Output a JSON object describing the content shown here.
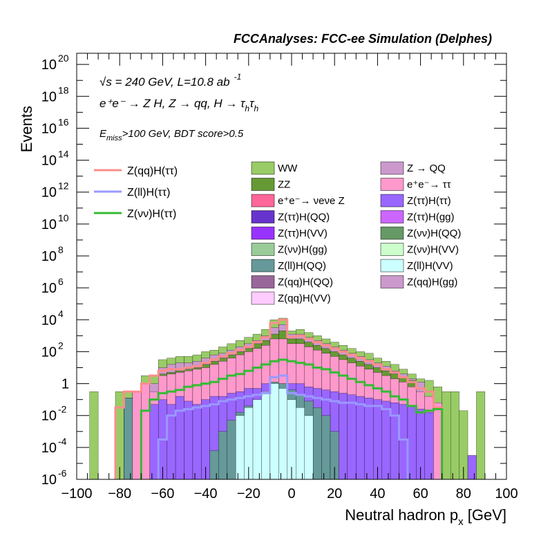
{
  "header": {
    "title": "FCCAnalyses: FCC-ee Simulation (Delphes)"
  },
  "annotations": {
    "energy_prefix": "√s = 240 GeV, L=10.8 ab",
    "energy_sup": "-1",
    "process": "e⁺e⁻ → Z H, Z → qq, H → τ",
    "process_sub1": "h",
    "process_tau2": "τ",
    "process_sub2": "h",
    "cut_E": "E",
    "cut_sub": "miss",
    "cut_rest": ">100 GeV, BDT score>0.5"
  },
  "colors": {
    "frame": "#000000",
    "signal_qq": "#ff8c8c",
    "signal_ll": "#9999ff",
    "signal_vv": "#33bb33"
  },
  "chart_data": {
    "type": "bar",
    "subtype": "stacked-histogram-log",
    "xlabel": "Neutral hadron p",
    "xlabel_sub": "x",
    "xlabel_unit": " [GeV]",
    "ylabel": "Events",
    "xlim": [
      -100,
      100
    ],
    "ylim_log10": [
      -6,
      20.7
    ],
    "log_y": true,
    "x_ticks": [
      "−100",
      "−80",
      "−60",
      "−40",
      "−20",
      "0",
      "20",
      "40",
      "60",
      "80",
      "100"
    ],
    "y_ticks": [
      {
        "base": "10",
        "exp": "20"
      },
      {
        "base": "10",
        "exp": "18"
      },
      {
        "base": "10",
        "exp": "16"
      },
      {
        "base": "10",
        "exp": "14"
      },
      {
        "base": "10",
        "exp": "12"
      },
      {
        "base": "10",
        "exp": "10"
      },
      {
        "base": "10",
        "exp": "8"
      },
      {
        "base": "10",
        "exp": "6"
      },
      {
        "base": "10",
        "exp": "4"
      },
      {
        "base": "10",
        "exp": "2"
      },
      {
        "base": "1",
        "exp": ""
      },
      {
        "base": "10",
        "exp": "-2"
      },
      {
        "base": "10",
        "exp": "-4"
      },
      {
        "base": "10",
        "exp": "-6"
      }
    ],
    "legend_placement": "top",
    "signal_legend": [
      {
        "label": "Z(qq)H(ττ)",
        "color": "#ff8c8c"
      },
      {
        "label": "Z(ll)H(ττ)",
        "color": "#9999ff"
      },
      {
        "label": "Z(νν)H(ττ)",
        "color": "#33bb33"
      }
    ],
    "background_legend": [
      {
        "label": "WW",
        "color": "#99cc66"
      },
      {
        "label": "Z → QQ",
        "color": "#cc99cc"
      },
      {
        "label": "ZZ",
        "color": "#669933"
      },
      {
        "label": "e⁺e⁻→ ττ",
        "color": "#ff99cc"
      },
      {
        "label": "e⁺e⁻→ νeνe Z",
        "color": "#ff6699"
      },
      {
        "label": "Z(ττ)H(ττ)",
        "color": "#9966ff"
      },
      {
        "label": "Z(ττ)H(QQ)",
        "color": "#6633cc"
      },
      {
        "label": "Z(ττ)H(gg)",
        "color": "#cc66ff"
      },
      {
        "label": "Z(ττ)H(VV)",
        "color": "#9933ff"
      },
      {
        "label": "Z(νν)H(QQ)",
        "color": "#669966"
      },
      {
        "label": "Z(νν)H(gg)",
        "color": "#99cc99"
      },
      {
        "label": "Z(νν)H(VV)",
        "color": "#ccffcc"
      },
      {
        "label": "Z(ll)H(QQ)",
        "color": "#669999"
      },
      {
        "label": "Z(ll)H(VV)",
        "color": "#ccffff"
      },
      {
        "label": "Z(qq)H(QQ)",
        "color": "#996699"
      },
      {
        "label": "Z(qq)H(gg)",
        "color": "#cc99cc"
      },
      {
        "label": "Z(qq)H(VV)",
        "color": "#ffccff"
      }
    ],
    "bin_width": 4,
    "bins_x": [
      -92,
      -88,
      -84,
      -80,
      -76,
      -72,
      -68,
      -64,
      -60,
      -56,
      -52,
      -48,
      -44,
      -40,
      -36,
      -32,
      -28,
      -24,
      -20,
      -16,
      -12,
      -8,
      -4,
      0,
      4,
      8,
      12,
      16,
      20,
      24,
      28,
      32,
      36,
      40,
      44,
      48,
      52,
      56,
      60,
      64,
      68,
      72,
      76,
      80,
      84,
      88,
      92,
      96
    ],
    "stack_tops": [
      {
        "name": "WW",
        "color": "#99cc66",
        "log10": [
          -0.5,
          null,
          null,
          -0.5,
          -0.5,
          null,
          0.5,
          0.5,
          1.5,
          1.6,
          1.7,
          1.7,
          1.8,
          2.0,
          2.1,
          2.3,
          2.5,
          2.7,
          2.9,
          3.1,
          3.4,
          4.0,
          4.1,
          3.3,
          3.4,
          3.2,
          3.0,
          2.8,
          2.6,
          2.4,
          2.2,
          2.0,
          1.9,
          1.6,
          1.4,
          1.2,
          0.9,
          0.6,
          0.3,
          0.2,
          -0.2,
          -0.5,
          -0.5,
          -1.7,
          null,
          -0.5,
          null,
          null
        ]
      },
      {
        "name": "Z → QQ",
        "color": "#cc99cc",
        "log10": [
          null,
          null,
          null,
          null,
          null,
          null,
          null,
          0.0,
          1.0,
          1.2,
          1.3,
          1.3,
          1.4,
          1.6,
          1.8,
          1.9,
          2.1,
          2.3,
          2.5,
          2.7,
          3.0,
          3.5,
          3.7,
          3.1,
          3.1,
          2.9,
          2.7,
          2.5,
          2.3,
          2.1,
          1.9,
          1.7,
          1.5,
          1.3,
          1.1,
          0.8,
          0.6,
          0.3,
          0.1,
          null,
          null,
          null,
          null,
          null,
          null,
          null,
          null,
          null
        ]
      },
      {
        "name": "ZZ",
        "color": "#669933",
        "log10": [
          null,
          null,
          null,
          null,
          -0.9,
          null,
          null,
          null,
          0.6,
          0.7,
          0.8,
          0.9,
          1.0,
          1.2,
          1.4,
          1.6,
          1.8,
          2.0,
          2.2,
          2.5,
          2.7,
          3.1,
          3.3,
          2.8,
          2.8,
          2.6,
          2.4,
          2.2,
          2.0,
          1.8,
          1.6,
          1.4,
          1.2,
          1.0,
          0.8,
          0.6,
          0.4,
          0.2,
          null,
          null,
          null,
          null,
          null,
          null,
          null,
          null,
          null,
          null
        ]
      },
      {
        "name": "e⁺e⁻→ ττ",
        "color": "#ff99cc",
        "log10": [
          null,
          null,
          null,
          null,
          -1.0,
          -0.5,
          0.0,
          -0.5,
          0.5,
          0.6,
          0.7,
          0.8,
          0.9,
          1.0,
          1.2,
          1.4,
          1.6,
          1.8,
          2.0,
          2.2,
          2.4,
          2.8,
          2.8,
          2.5,
          2.5,
          2.3,
          2.1,
          1.9,
          1.7,
          1.5,
          1.3,
          1.1,
          0.9,
          0.7,
          0.5,
          0.3,
          0.1,
          -0.2,
          -0.5,
          -0.8,
          -1.2,
          null,
          null,
          null,
          null,
          null,
          null,
          null
        ]
      },
      {
        "name": "Z(ττ)H(ττ)",
        "color": "#9966ff",
        "log10": [
          null,
          null,
          null,
          null,
          null,
          null,
          null,
          -1.3,
          -1.0,
          -1.3,
          -0.8,
          -1.1,
          -1.3,
          -1.0,
          -0.8,
          -0.8,
          -0.6,
          -0.5,
          -0.3,
          -0.3,
          0.0,
          0.0,
          0.0,
          0.0,
          0.0,
          -0.2,
          -0.3,
          -0.4,
          -0.5,
          -0.6,
          -0.7,
          -0.8,
          -0.9,
          -1.0,
          -1.1,
          -1.2,
          -1.3,
          -1.4,
          -1.6,
          -1.8,
          null,
          null,
          null,
          null,
          -4.5,
          null,
          null,
          null
        ]
      },
      {
        "name": "Z(ll)H(QQ)",
        "color": "#669999",
        "log10": [
          null,
          null,
          null,
          null,
          -0.9,
          null,
          null,
          null,
          null,
          null,
          null,
          null,
          null,
          null,
          -4.2,
          -3.0,
          -2.3,
          -1.8,
          -1.4,
          -1.0,
          -0.6,
          0.1,
          0.0,
          -0.4,
          -0.7,
          -1.1,
          -1.5,
          -2.0,
          -3.0,
          null,
          null,
          null,
          null,
          null,
          null,
          null,
          null,
          null,
          null,
          null,
          null,
          null,
          null,
          null,
          null,
          null,
          null,
          null
        ]
      },
      {
        "name": "Z(ll)H(VV)",
        "color": "#ccffff",
        "log10": [
          null,
          null,
          null,
          null,
          null,
          null,
          null,
          null,
          null,
          null,
          null,
          null,
          null,
          null,
          null,
          null,
          null,
          -2.0,
          -1.5,
          -1.0,
          -0.5,
          0.0,
          -0.3,
          -1.0,
          -1.5,
          -2.0,
          null,
          null,
          null,
          null,
          null,
          null,
          null,
          null,
          null,
          null,
          null,
          null,
          null,
          null,
          null,
          null,
          null,
          null,
          null,
          null,
          null,
          null
        ]
      }
    ],
    "signal_lines": [
      {
        "name": "Z(qq)H(ττ)",
        "color": "#ff8c8c",
        "log10": [
          null,
          null,
          null,
          -1.5,
          -0.5,
          -0.5,
          0.0,
          0.5,
          0.8,
          0.9,
          0.9,
          1.0,
          1.1,
          1.3,
          1.5,
          1.7,
          1.9,
          2.1,
          2.3,
          2.6,
          2.9,
          3.8,
          4.0,
          2.9,
          3.0,
          2.8,
          2.6,
          2.4,
          2.2,
          2.0,
          1.8,
          1.6,
          1.4,
          1.2,
          0.9,
          0.7,
          0.4,
          0.1,
          -0.3,
          -0.5,
          -1.5,
          null,
          null,
          null,
          null,
          null,
          null,
          null
        ]
      },
      {
        "name": "Z(ll)H(ττ)",
        "color": "#9999ff",
        "log10": [
          null,
          null,
          null,
          null,
          null,
          null,
          null,
          null,
          -3.5,
          -2.0,
          -1.7,
          -1.6,
          -1.5,
          -1.4,
          -1.3,
          -1.1,
          -1.0,
          -0.9,
          -0.8,
          -0.7,
          -0.6,
          0.4,
          0.5,
          -0.6,
          -0.7,
          -0.8,
          -0.9,
          -1.0,
          -1.1,
          -1.2,
          -1.2,
          -1.3,
          -1.4,
          -1.4,
          -1.6,
          -2.0,
          -3.5,
          null,
          null,
          null,
          null,
          null,
          null,
          null,
          null,
          null,
          null,
          null
        ]
      },
      {
        "name": "Z(νν)H(ττ)",
        "color": "#33bb33",
        "log10": [
          null,
          null,
          null,
          null,
          null,
          null,
          -1.7,
          -1.0,
          -0.6,
          -0.5,
          -0.4,
          -0.2,
          -0.1,
          0.0,
          0.1,
          0.3,
          0.5,
          0.6,
          0.8,
          1.0,
          1.2,
          1.4,
          1.5,
          1.4,
          1.3,
          1.2,
          1.0,
          0.9,
          0.7,
          0.5,
          0.3,
          0.1,
          -0.1,
          -0.3,
          -0.5,
          -0.8,
          -1.0,
          -1.4,
          -1.8,
          -1.7,
          -1.6,
          null,
          null,
          null,
          null,
          null,
          null,
          null
        ]
      }
    ]
  }
}
